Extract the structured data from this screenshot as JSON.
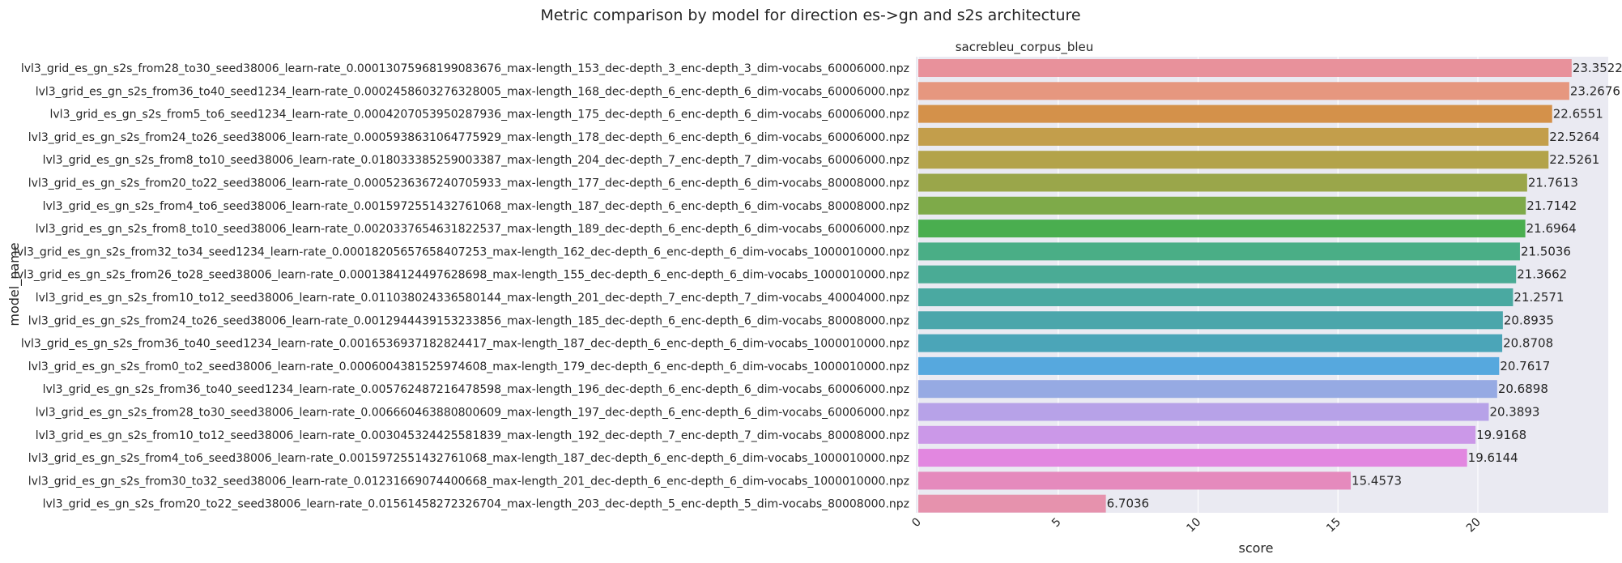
{
  "chart_data": {
    "type": "bar",
    "orientation": "horizontal",
    "title": "Metric comparison by model for direction es->gn and s2s architecture",
    "subtitle": "sacrebleu_corpus_bleu",
    "xlabel": "score",
    "ylabel": "model_name",
    "xlim": [
      0,
      23.9
    ],
    "xticks": [
      "0",
      "5",
      "10",
      "15",
      "20"
    ],
    "grid": true,
    "categories": [
      "lvl3_grid_es_gn_s2s_from28_to30_seed38006_learn-rate_0.00013075968199083676_max-length_153_dec-depth_3_enc-depth_3_dim-vocabs_60006000.npz",
      "lvl3_grid_es_gn_s2s_from36_to40_seed1234_learn-rate_0.0002458603276328005_max-length_168_dec-depth_6_enc-depth_6_dim-vocabs_60006000.npz",
      "lvl3_grid_es_gn_s2s_from5_to6_seed1234_learn-rate_0.0004207053950287936_max-length_175_dec-depth_6_enc-depth_6_dim-vocabs_60006000.npz",
      "lvl3_grid_es_gn_s2s_from24_to26_seed38006_learn-rate_0.0005938631064775929_max-length_178_dec-depth_6_enc-depth_6_dim-vocabs_60006000.npz",
      "lvl3_grid_es_gn_s2s_from8_to10_seed38006_learn-rate_0.018033385259003387_max-length_204_dec-depth_7_enc-depth_7_dim-vocabs_60006000.npz",
      "lvl3_grid_es_gn_s2s_from20_to22_seed38006_learn-rate_0.0005236367240705933_max-length_177_dec-depth_6_enc-depth_6_dim-vocabs_80008000.npz",
      "lvl3_grid_es_gn_s2s_from4_to6_seed38006_learn-rate_0.0015972551432761068_max-length_187_dec-depth_6_enc-depth_6_dim-vocabs_80008000.npz",
      "lvl3_grid_es_gn_s2s_from8_to10_seed38006_learn-rate_0.0020337654631822537_max-length_189_dec-depth_6_enc-depth_6_dim-vocabs_60006000.npz",
      "lvl3_grid_es_gn_s2s_from32_to34_seed1234_learn-rate_0.00018205657658407253_max-length_162_dec-depth_6_enc-depth_6_dim-vocabs_1000010000.npz",
      "lvl3_grid_es_gn_s2s_from26_to28_seed38006_learn-rate_0.0001384124497628698_max-length_155_dec-depth_6_enc-depth_6_dim-vocabs_1000010000.npz",
      "lvl3_grid_es_gn_s2s_from10_to12_seed38006_learn-rate_0.011038024336580144_max-length_201_dec-depth_7_enc-depth_7_dim-vocabs_40004000.npz",
      "lvl3_grid_es_gn_s2s_from24_to26_seed38006_learn-rate_0.0012944439153233856_max-length_185_dec-depth_6_enc-depth_6_dim-vocabs_80008000.npz",
      "lvl3_grid_es_gn_s2s_from36_to40_seed1234_learn-rate_0.0016536937182824417_max-length_187_dec-depth_6_enc-depth_6_dim-vocabs_1000010000.npz",
      "lvl3_grid_es_gn_s2s_from0_to2_seed38006_learn-rate_0.0006004381525974608_max-length_179_dec-depth_6_enc-depth_6_dim-vocabs_1000010000.npz",
      "lvl3_grid_es_gn_s2s_from36_to40_seed1234_learn-rate_0.005762487216478598_max-length_196_dec-depth_6_enc-depth_6_dim-vocabs_60006000.npz",
      "lvl3_grid_es_gn_s2s_from28_to30_seed38006_learn-rate_0.006660463880800609_max-length_197_dec-depth_6_enc-depth_6_dim-vocabs_60006000.npz",
      "lvl3_grid_es_gn_s2s_from10_to12_seed38006_learn-rate_0.003045324425581839_max-length_192_dec-depth_7_enc-depth_7_dim-vocabs_80008000.npz",
      "lvl3_grid_es_gn_s2s_from4_to6_seed38006_learn-rate_0.0015972551432761068_max-length_187_dec-depth_6_enc-depth_6_dim-vocabs_1000010000.npz",
      "lvl3_grid_es_gn_s2s_from30_to32_seed38006_learn-rate_0.01231669074400668_max-length_201_dec-depth_6_enc-depth_6_dim-vocabs_1000010000.npz",
      "lvl3_grid_es_gn_s2s_from20_to22_seed38006_learn-rate_0.01561458272326704_max-length_203_dec-depth_5_enc-depth_5_dim-vocabs_80008000.npz"
    ],
    "values": [
      23.3522,
      23.2676,
      22.6551,
      22.5264,
      22.5261,
      21.7613,
      21.7142,
      21.6964,
      21.5036,
      21.3662,
      21.2571,
      20.8935,
      20.8708,
      20.7617,
      20.6898,
      20.3893,
      19.9168,
      19.6144,
      15.4573,
      6.7036
    ],
    "labels": [
      "23.3522",
      "23.2676",
      "22.6551",
      "22.5264",
      "22.5261",
      "21.7613",
      "21.7142",
      "21.6964",
      "21.5036",
      "21.3662",
      "21.2571",
      "20.8935",
      "20.8708",
      "20.7617",
      "20.6898",
      "20.3893",
      "19.9168",
      "19.6144",
      "15.4573",
      "6.7036"
    ],
    "colors": [
      "#e8919b",
      "#e6977f",
      "#d4914a",
      "#c39e4b",
      "#b3a34a",
      "#9aa64a",
      "#7eaa49",
      "#4aae4f",
      "#4aae86",
      "#4aab95",
      "#4aa9a1",
      "#4ba6ab",
      "#4ba5b8",
      "#56a8de",
      "#96aae3",
      "#b7a2e8",
      "#cb98e8",
      "#e287e0",
      "#e58abd",
      "#e692ad"
    ],
    "plot_background": "#eaeaf2",
    "grid_color": "#ffffff"
  }
}
